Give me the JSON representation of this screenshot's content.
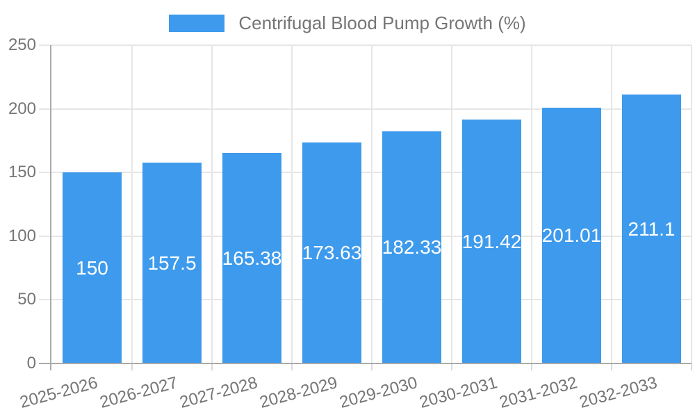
{
  "chart_data": {
    "type": "bar",
    "title": "",
    "legend": "Centrifugal Blood Pump Growth (%)",
    "legend_position": "top-center",
    "categories": [
      "2025-2026",
      "2026-2027",
      "2027-2028",
      "2028-2029",
      "2029-2030",
      "2030-2031",
      "2031-2032",
      "2032-2033"
    ],
    "values": [
      150,
      157.5,
      165.38,
      173.63,
      182.33,
      191.42,
      201.01,
      211.1
    ],
    "value_labels": [
      "150",
      "157.5",
      "165.38",
      "173.63",
      "182.33",
      "191.42",
      "201.01",
      "211.1"
    ],
    "xlabel": "",
    "ylabel": "",
    "ylim": [
      0,
      250
    ],
    "yticks": [
      0,
      50,
      100,
      150,
      200,
      250
    ],
    "ytick_labels": [
      "0",
      "50",
      "100",
      "150",
      "200",
      "250"
    ],
    "grid": true,
    "colors": {
      "bar": "#3d9aec",
      "bar_value_text": "#ffffff",
      "axis_line": "#aaaaaa",
      "gridline": "#e6e6e6",
      "tick_text": "#757575",
      "legend_text": "#757575",
      "background": "#ffffff"
    }
  }
}
